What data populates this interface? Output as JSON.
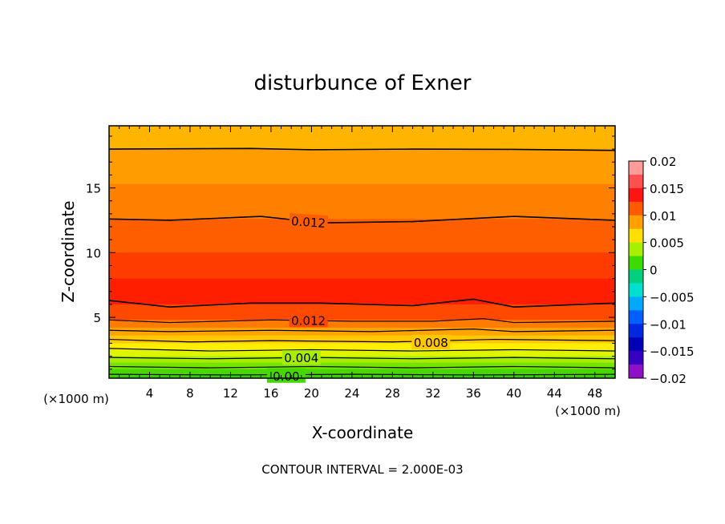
{
  "chart_data": {
    "type": "heatmap",
    "subtype": "filled-contour",
    "title": "disturbunce of Exner",
    "xlabel": "X-coordinate",
    "ylabel": "Z-coordinate",
    "x_unit": "(×1000 m)",
    "y_unit": "(×1000 m)",
    "xlim": [
      0,
      50
    ],
    "ylim": [
      0.3,
      19.8
    ],
    "x_ticks": [
      4,
      8,
      12,
      16,
      20,
      24,
      28,
      32,
      36,
      40,
      44,
      48
    ],
    "y_ticks": [
      5,
      10,
      15
    ],
    "footer": "CONTOUR INTERVAL = 2.000E-03",
    "contour_interval": 0.002,
    "colorbar": {
      "min": -0.02,
      "max": 0.02,
      "tick_labels": [
        "0.02",
        "0.015",
        "0.01",
        "0.005",
        "0",
        "−0.005",
        "−0.01",
        "−0.015",
        "−0.02"
      ],
      "tick_values": [
        0.02,
        0.015,
        0.01,
        0.005,
        0,
        -0.005,
        -0.01,
        -0.015,
        -0.02
      ],
      "levels": [
        {
          "lo": 0.0175,
          "hi": 0.02,
          "color": "#ff9a9a"
        },
        {
          "lo": 0.015,
          "hi": 0.0175,
          "color": "#ff5050"
        },
        {
          "lo": 0.0125,
          "hi": 0.015,
          "color": "#ff1414"
        },
        {
          "lo": 0.01,
          "hi": 0.0125,
          "color": "#ff5a00"
        },
        {
          "lo": 0.0075,
          "hi": 0.01,
          "color": "#ffa000"
        },
        {
          "lo": 0.005,
          "hi": 0.0075,
          "color": "#ffe000"
        },
        {
          "lo": 0.0025,
          "hi": 0.005,
          "color": "#a6f000"
        },
        {
          "lo": 0,
          "hi": 0.0025,
          "color": "#3cdc00"
        },
        {
          "lo": -0.0025,
          "hi": 0,
          "color": "#00d080"
        },
        {
          "lo": -0.005,
          "hi": -0.0025,
          "color": "#00e0d0"
        },
        {
          "lo": -0.0075,
          "hi": -0.005,
          "color": "#00a8ff"
        },
        {
          "lo": -0.01,
          "hi": -0.0075,
          "color": "#0060ff"
        },
        {
          "lo": -0.0125,
          "hi": -0.01,
          "color": "#0028e0"
        },
        {
          "lo": -0.015,
          "hi": -0.0125,
          "color": "#0000b8"
        },
        {
          "lo": -0.0175,
          "hi": -0.015,
          "color": "#3800c0"
        },
        {
          "lo": -0.02,
          "hi": -0.0175,
          "color": "#9010c8"
        }
      ]
    },
    "bands": [
      {
        "z_bottom": 18.0,
        "z_top": 19.8,
        "value": 0.009,
        "color": "#ffb400"
      },
      {
        "z_bottom": 15.3,
        "z_top": 18.0,
        "value": 0.0105,
        "color": "#ff9c00"
      },
      {
        "z_bottom": 12.6,
        "z_top": 15.3,
        "value": 0.0115,
        "color": "#ff8000"
      },
      {
        "z_bottom": 10.0,
        "z_top": 12.6,
        "value": 0.0125,
        "color": "#ff5e00"
      },
      {
        "z_bottom": 8.0,
        "z_top": 10.0,
        "value": 0.0135,
        "color": "#ff3c00"
      },
      {
        "z_bottom": 6.0,
        "z_top": 8.0,
        "value": 0.0142,
        "color": "#ff1e00"
      },
      {
        "z_bottom": 4.8,
        "z_top": 6.0,
        "value": 0.013,
        "color": "#ff4800"
      },
      {
        "z_bottom": 4.2,
        "z_top": 4.8,
        "value": 0.0115,
        "color": "#ff7c00"
      },
      {
        "z_bottom": 3.6,
        "z_top": 4.2,
        "value": 0.0098,
        "color": "#ffa400"
      },
      {
        "z_bottom": 3.0,
        "z_top": 3.6,
        "value": 0.008,
        "color": "#ffc800"
      },
      {
        "z_bottom": 2.5,
        "z_top": 3.0,
        "value": 0.0065,
        "color": "#ffee00"
      },
      {
        "z_bottom": 2.0,
        "z_top": 2.5,
        "value": 0.0052,
        "color": "#e0f400"
      },
      {
        "z_bottom": 1.5,
        "z_top": 2.0,
        "value": 0.004,
        "color": "#a8ee00"
      },
      {
        "z_bottom": 1.0,
        "z_top": 1.5,
        "value": 0.003,
        "color": "#74e400"
      },
      {
        "z_bottom": 0.5,
        "z_top": 1.0,
        "value": 0.0015,
        "color": "#46d800"
      },
      {
        "z_bottom": 0.3,
        "z_top": 0.5,
        "value": 0.0005,
        "color": "#2ed000"
      }
    ],
    "contour_lines": [
      {
        "value": 0.01,
        "points": [
          [
            0,
            18.0
          ],
          [
            14,
            18.05
          ],
          [
            20,
            17.95
          ],
          [
            30,
            18.0
          ],
          [
            40,
            17.98
          ],
          [
            50,
            17.9
          ]
        ]
      },
      {
        "value": 0.012,
        "points": [
          [
            0,
            12.6
          ],
          [
            6,
            12.5
          ],
          [
            15,
            12.8
          ],
          [
            21,
            12.3
          ],
          [
            30,
            12.4
          ],
          [
            40,
            12.8
          ],
          [
            50,
            12.5
          ]
        ]
      },
      {
        "value": 0.014,
        "points": [
          [
            0,
            6.3
          ],
          [
            6,
            5.8
          ],
          [
            14,
            6.1
          ],
          [
            21,
            6.1
          ],
          [
            30,
            5.9
          ],
          [
            36,
            6.4
          ],
          [
            40,
            5.8
          ],
          [
            50,
            6.1
          ]
        ]
      },
      {
        "value": 0.012,
        "points": [
          [
            0,
            4.8
          ],
          [
            6,
            4.6
          ],
          [
            16,
            4.8
          ],
          [
            24,
            4.7
          ],
          [
            32,
            4.7
          ],
          [
            37,
            4.9
          ],
          [
            40,
            4.6
          ],
          [
            50,
            4.7
          ]
        ]
      },
      {
        "value": 0.01,
        "points": [
          [
            0,
            4.0
          ],
          [
            6,
            3.9
          ],
          [
            16,
            4.0
          ],
          [
            26,
            3.9
          ],
          [
            36,
            4.1
          ],
          [
            40,
            3.9
          ],
          [
            50,
            4.0
          ]
        ]
      },
      {
        "value": 0.008,
        "points": [
          [
            0,
            3.3
          ],
          [
            8,
            3.1
          ],
          [
            16,
            3.2
          ],
          [
            28,
            3.1
          ],
          [
            38,
            3.3
          ],
          [
            50,
            3.2
          ]
        ]
      },
      {
        "value": 0.006,
        "points": [
          [
            0,
            2.6
          ],
          [
            10,
            2.4
          ],
          [
            20,
            2.5
          ],
          [
            30,
            2.4
          ],
          [
            40,
            2.5
          ],
          [
            50,
            2.4
          ]
        ]
      },
      {
        "value": 0.004,
        "points": [
          [
            0,
            1.9
          ],
          [
            10,
            1.8
          ],
          [
            20,
            1.9
          ],
          [
            30,
            1.8
          ],
          [
            40,
            1.9
          ],
          [
            50,
            1.8
          ]
        ]
      },
      {
        "value": 0.002,
        "points": [
          [
            0,
            1.2
          ],
          [
            10,
            1.1
          ],
          [
            20,
            1.2
          ],
          [
            30,
            1.1
          ],
          [
            40,
            1.2
          ],
          [
            50,
            1.1
          ]
        ]
      },
      {
        "value": 0.0,
        "points": [
          [
            0,
            0.6
          ],
          [
            12,
            0.55
          ],
          [
            24,
            0.6
          ],
          [
            36,
            0.55
          ],
          [
            50,
            0.6
          ]
        ]
      }
    ],
    "contour_labels": [
      {
        "text": "0.012",
        "x": 19.7,
        "z": 12.4,
        "angle": 4
      },
      {
        "text": "0.012",
        "x": 19.7,
        "z": 4.8,
        "angle": 0
      },
      {
        "text": "0.008",
        "x": 31.8,
        "z": 3.1,
        "angle": 0
      },
      {
        "text": "0.004",
        "x": 19.0,
        "z": 1.9,
        "angle": 0
      },
      {
        "text": "0.00",
        "x": 17.5,
        "z": 0.5,
        "angle": 0
      }
    ]
  }
}
